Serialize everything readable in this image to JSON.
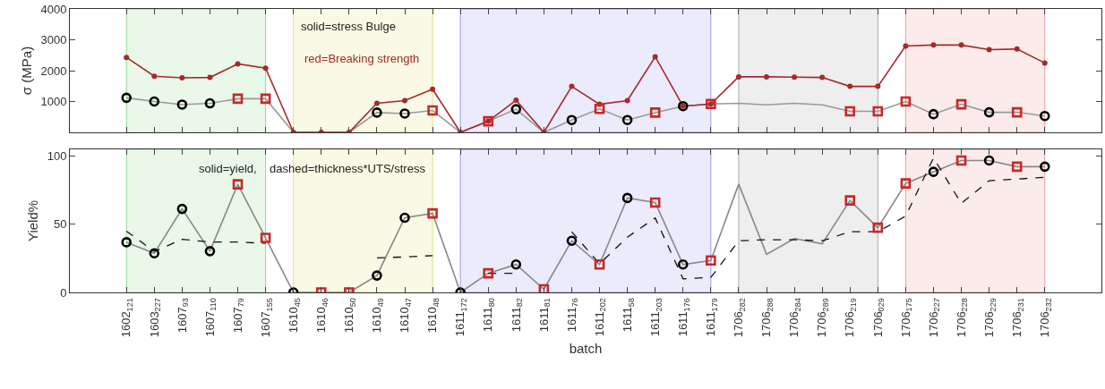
{
  "chart_data": [
    {
      "type": "line",
      "ylabel": "σ (MPa)",
      "tick_labels": "y",
      "grid": false,
      "categories": [
        "1602$_{121}$",
        "1603$_{227}$",
        "1607$_{93}$",
        "1607$_{110}$",
        "1607$_{79}$",
        "1607$_{155}$",
        "1610$_{45}$",
        "1610$_{46}$",
        "1610$_{50}$",
        "1610$_{49}$",
        "1610$_{47}$",
        "1610$_{48}$",
        "1611$_{172}$",
        "1611$_{80}$",
        "1611$_{82}$",
        "1611$_{81}$",
        "1611$_{76}$",
        "1611$_{202}$",
        "1611$_{58}$",
        "1611$_{203}$",
        "1611$_{176}$",
        "1611$_{179}$",
        "1706$_{282}$",
        "1706$_{288}$",
        "1706$_{284}$",
        "1706$_{289}$",
        "1706$_{219}$",
        "1706$_{029}$",
        "1706$_{175}$",
        "1706$_{227}$",
        "1706$_{228}$",
        "1706$_{229}$",
        "1706$_{231}$",
        "1706$_{232}$"
      ],
      "ylim": [
        0,
        4000
      ],
      "yticks": [
        1000,
        2000,
        3000,
        4000
      ],
      "annotations": [
        "solid=stress Bulge",
        "red=Breaking strength"
      ],
      "bands": [
        {
          "axis": "x",
          "from": "1602$_{121}$",
          "to": "1607$_{155}$",
          "color": "#8fdc8f"
        },
        {
          "axis": "x",
          "from": "1610$_{45}$",
          "to": "1610$_{48}$",
          "color": "#e2e27e"
        },
        {
          "axis": "x",
          "from": "1611$_{172}$",
          "to": "1611$_{179}$",
          "color": "#9a9af0"
        },
        {
          "axis": "x",
          "from": "1706$_{282}$",
          "to": "1706$_{029}$",
          "color": "#aaaaaa"
        },
        {
          "axis": "x",
          "from": "1706$_{175}$",
          "to": "1706$_{232}$",
          "color": "#eb9a9a"
        }
      ],
      "series": [
        {
          "marker": "none",
          "line_style": "solid",
          "color": "#999999",
          "values": [
            1120,
            1000,
            900,
            940,
            1090,
            1090,
            0,
            0,
            0,
            640,
            610,
            710,
            0,
            360,
            750,
            0,
            400,
            760,
            400,
            640,
            850,
            920,
            940,
            890,
            940,
            890,
            680,
            680,
            1000,
            590,
            910,
            650,
            650,
            530
          ]
        },
        {
          "marker": "circle",
          "line_style": "solid",
          "color": "#a52a2a",
          "values": [
            2430,
            1820,
            1770,
            1780,
            2220,
            2080,
            0,
            0,
            0,
            940,
            1030,
            1400,
            0,
            360,
            1040,
            0,
            1490,
            910,
            1030,
            2450,
            850,
            920,
            1800,
            1800,
            1790,
            1780,
            1490,
            1490,
            2800,
            2830,
            2830,
            2680,
            2700,
            2250
          ]
        },
        {
          "type": "scatter",
          "marker": "circle",
          "color": "#000000",
          "values": [
            1120,
            1000,
            900,
            940,
            null,
            null,
            null,
            null,
            null,
            640,
            610,
            null,
            null,
            null,
            750,
            null,
            400,
            null,
            400,
            null,
            850,
            null,
            null,
            null,
            null,
            null,
            null,
            null,
            null,
            590,
            null,
            650,
            null,
            530
          ]
        },
        {
          "type": "scatter",
          "marker": "square",
          "color": "#c82828",
          "values": [
            null,
            null,
            null,
            null,
            1090,
            1090,
            null,
            null,
            null,
            null,
            null,
            710,
            null,
            360,
            null,
            null,
            null,
            760,
            null,
            640,
            null,
            920,
            null,
            null,
            null,
            null,
            680,
            680,
            1000,
            null,
            910,
            null,
            650,
            null
          ]
        }
      ]
    },
    {
      "type": "line",
      "ylabel": "Yield%",
      "xlabel": "batch",
      "grid": false,
      "categories": [
        "1602$_{121}$",
        "1603$_{227}$",
        "1607$_{93}$",
        "1607$_{110}$",
        "1607$_{79}$",
        "1607$_{155}$",
        "1610$_{45}$",
        "1610$_{46}$",
        "1610$_{50}$",
        "1610$_{49}$",
        "1610$_{47}$",
        "1610$_{48}$",
        "1611$_{172}$",
        "1611$_{80}$",
        "1611$_{82}$",
        "1611$_{81}$",
        "1611$_{76}$",
        "1611$_{202}$",
        "1611$_{58}$",
        "1611$_{203}$",
        "1611$_{176}$",
        "1611$_{179}$",
        "1706$_{282}$",
        "1706$_{288}$",
        "1706$_{284}$",
        "1706$_{289}$",
        "1706$_{219}$",
        "1706$_{029}$",
        "1706$_{175}$",
        "1706$_{227}$",
        "1706$_{228}$",
        "1706$_{229}$",
        "1706$_{231}$",
        "1706$_{232}$"
      ],
      "ylim": [
        0,
        105
      ],
      "yticks": [
        0,
        50,
        100
      ],
      "annotations": [
        "solid=yield,    dashed=thickness*UTS/stress"
      ],
      "bands": [
        {
          "axis": "x",
          "from": "1602$_{121}$",
          "to": "1607$_{155}$",
          "color": "#8fdc8f"
        },
        {
          "axis": "x",
          "from": "1610$_{45}$",
          "to": "1610$_{48}$",
          "color": "#e2e27e"
        },
        {
          "axis": "x",
          "from": "1611$_{172}$",
          "to": "1611$_{179}$",
          "color": "#9a9af0"
        },
        {
          "axis": "x",
          "from": "1706$_{282}$",
          "to": "1706$_{029}$",
          "color": "#aaaaaa"
        },
        {
          "axis": "x",
          "from": "1706$_{175}$",
          "to": "1706$_{232}$",
          "color": "#eb9a9a"
        }
      ],
      "series": [
        {
          "marker": "none",
          "line_style": "solid",
          "color": "#888888",
          "values": [
            36.8,
            28.7,
            61.3,
            30.3,
            79.3,
            40,
            0,
            0,
            0,
            12.4,
            54.8,
            58,
            0,
            14,
            20.5,
            2.3,
            37.9,
            20.5,
            69.3,
            66,
            20.5,
            23.5,
            79.5,
            28,
            39.5,
            35.7,
            67.5,
            47.5,
            80,
            88.5,
            96.8,
            96.8,
            92.3,
            92.3
          ]
        },
        {
          "marker": "none",
          "line_style": "dashed",
          "color": "#111111",
          "values": [
            45,
            30,
            39,
            37,
            37,
            36,
            null,
            null,
            null,
            25.4,
            26,
            27,
            null,
            14,
            14,
            null,
            44.5,
            21,
            40.5,
            54.7,
            10,
            11,
            37.9,
            38.7,
            38.7,
            37.9,
            44.5,
            44.5,
            56,
            98.7,
            65.3,
            82,
            83.2,
            84.5
          ]
        },
        {
          "type": "scatter",
          "marker": "circle",
          "color": "#000000",
          "values": [
            36.8,
            28.7,
            61.3,
            30.3,
            null,
            null,
            0,
            null,
            null,
            12.4,
            54.8,
            null,
            0,
            null,
            20.5,
            null,
            37.9,
            null,
            69.3,
            null,
            20.5,
            null,
            null,
            null,
            null,
            null,
            null,
            null,
            null,
            88.5,
            null,
            96.8,
            null,
            92.3
          ]
        },
        {
          "type": "scatter",
          "marker": "square",
          "color": "#c82828",
          "values": [
            null,
            null,
            null,
            null,
            79.3,
            40,
            null,
            0,
            0,
            null,
            null,
            58,
            null,
            14,
            null,
            2.3,
            null,
            20.5,
            null,
            66,
            null,
            23.5,
            null,
            null,
            null,
            null,
            67.5,
            47.5,
            80,
            null,
            96.8,
            null,
            92.3,
            null
          ]
        }
      ]
    }
  ]
}
